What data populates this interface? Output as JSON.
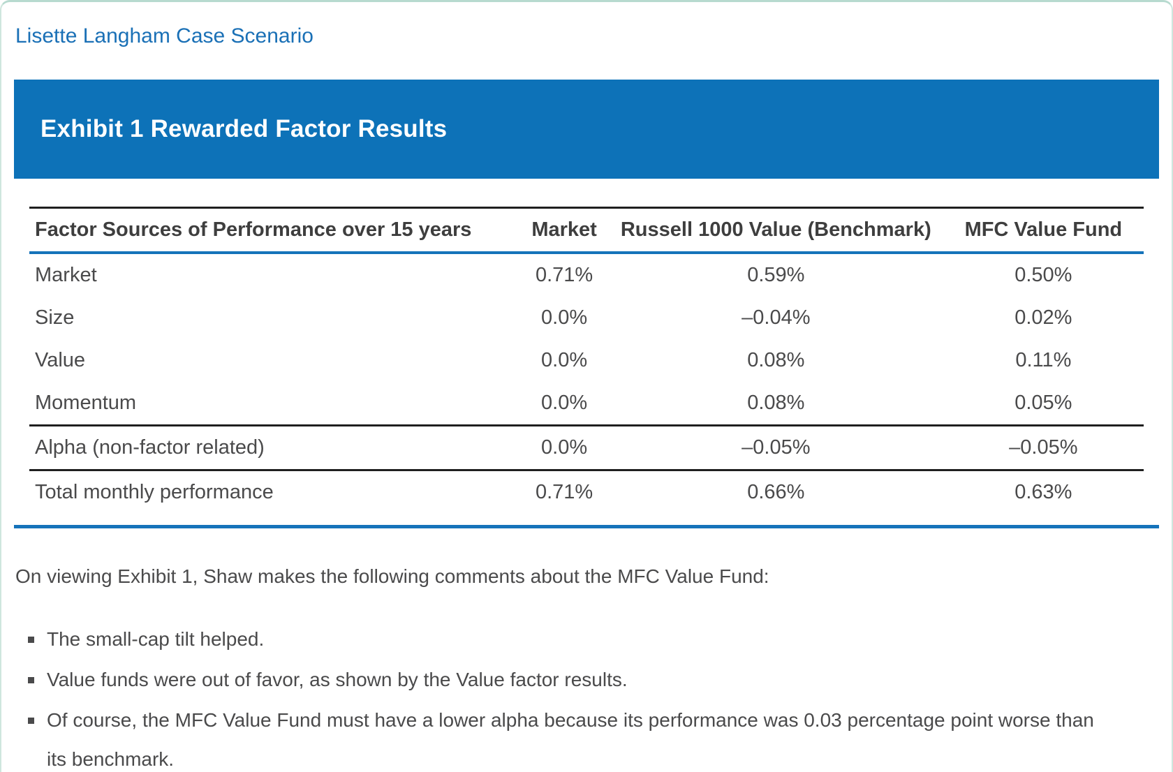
{
  "page": {
    "title": "Lisette Langham Case Scenario"
  },
  "exhibit": {
    "heading": "Exhibit 1 Rewarded Factor Results"
  },
  "table": {
    "columns": [
      "Factor Sources of Performance over 15 years",
      "Market",
      "Russell 1000 Value (Benchmark)",
      "MFC Value Fund"
    ],
    "rows": [
      {
        "label": "Market",
        "market": "0.71%",
        "benchmark": "0.59%",
        "fund": "0.50%"
      },
      {
        "label": "Size",
        "market": "0.0%",
        "benchmark": "–0.04%",
        "fund": "0.02%"
      },
      {
        "label": "Value",
        "market": "0.0%",
        "benchmark": "0.08%",
        "fund": "0.11%"
      },
      {
        "label": "Momentum",
        "market": "0.0%",
        "benchmark": "0.08%",
        "fund": "0.05%"
      },
      {
        "label": "Alpha (non-factor related)",
        "market": "0.0%",
        "benchmark": "–0.05%",
        "fund": "–0.05%"
      },
      {
        "label": "Total monthly performance",
        "market": "0.71%",
        "benchmark": "0.66%",
        "fund": "0.63%"
      }
    ]
  },
  "content": {
    "intro": "On viewing Exhibit 1, Shaw makes the following comments about the MFC Value Fund:",
    "comments": [
      "The small-cap tilt helped.",
      "Value funds were out of favor, as shown by the Value factor results.",
      "Of course, the MFC Value Fund must have a lower alpha because its performance was 0.03 percentage point worse than its benchmark."
    ]
  },
  "colors": {
    "accent_blue": "#0d72b8",
    "title_blue": "#1a70b6",
    "table_rule_blue": "#1573ba",
    "table_rule_black": "#1f1f1f",
    "text_gray": "#4a4a4b",
    "page_border_teal": "#b7dacf"
  }
}
